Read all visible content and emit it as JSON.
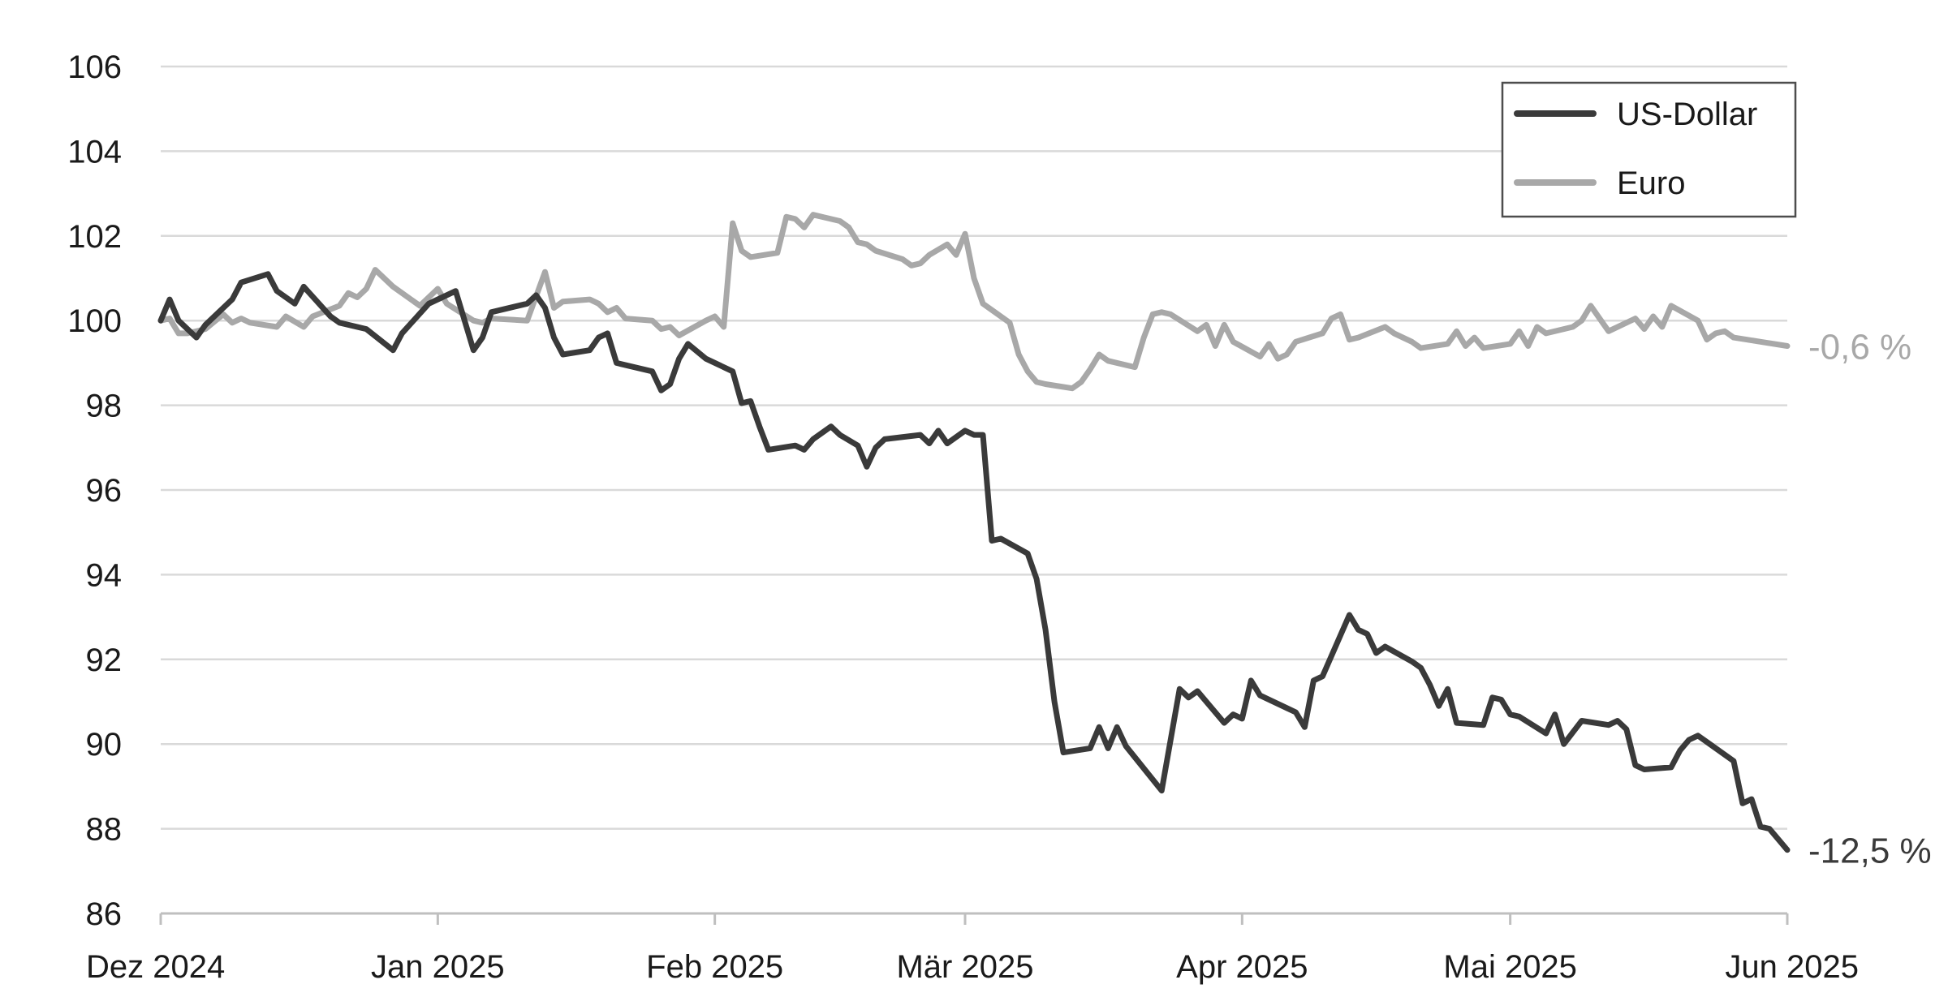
{
  "chart_data": {
    "type": "line",
    "title": "",
    "xlabel": "",
    "ylabel": "",
    "ylim": [
      86,
      106
    ],
    "y_ticks": [
      "106",
      "104",
      "102",
      "100",
      "98",
      "96",
      "94",
      "92",
      "90",
      "88",
      "86"
    ],
    "x_range": [
      "2024-12-01",
      "2025-06-01"
    ],
    "x_ticks": [
      {
        "date": "2024-12-01",
        "label": "Dez 2024"
      },
      {
        "date": "2025-01-01",
        "label": "Jan 2025"
      },
      {
        "date": "2025-02-01",
        "label": "Feb 2025"
      },
      {
        "date": "2025-03-01",
        "label": "Mär 2025"
      },
      {
        "date": "2025-04-01",
        "label": "Apr 2025"
      },
      {
        "date": "2025-05-01",
        "label": "Mai 2025"
      },
      {
        "date": "2025-06-01",
        "label": "Jun 2025"
      }
    ],
    "grid": true,
    "legend_position": "top-right",
    "series": [
      {
        "name": "US-Dollar",
        "color": "#3a3a3a",
        "end_label": "-12,5 %",
        "points": [
          [
            "2024-12-01",
            100.0
          ],
          [
            "2024-12-02",
            100.5
          ],
          [
            "2024-12-03",
            100.0
          ],
          [
            "2024-12-05",
            99.6
          ],
          [
            "2024-12-06",
            99.9
          ],
          [
            "2024-12-08",
            100.3
          ],
          [
            "2024-12-09",
            100.5
          ],
          [
            "2024-12-10",
            100.9
          ],
          [
            "2024-12-13",
            101.1
          ],
          [
            "2024-12-14",
            100.7
          ],
          [
            "2024-12-16",
            100.4
          ],
          [
            "2024-12-17",
            100.8
          ],
          [
            "2024-12-20",
            100.1
          ],
          [
            "2024-12-21",
            99.95
          ],
          [
            "2024-12-24",
            99.8
          ],
          [
            "2024-12-27",
            99.3
          ],
          [
            "2024-12-28",
            99.7
          ],
          [
            "2024-12-31",
            100.4
          ],
          [
            "2025-01-03",
            100.7
          ],
          [
            "2025-01-05",
            99.3
          ],
          [
            "2025-01-06",
            99.6
          ],
          [
            "2025-01-07",
            100.2
          ],
          [
            "2025-01-11",
            100.4
          ],
          [
            "2025-01-12",
            100.6
          ],
          [
            "2025-01-13",
            100.3
          ],
          [
            "2025-01-14",
            99.6
          ],
          [
            "2025-01-15",
            99.2
          ],
          [
            "2025-01-18",
            99.3
          ],
          [
            "2025-01-19",
            99.6
          ],
          [
            "2025-01-20",
            99.7
          ],
          [
            "2025-01-21",
            99.0
          ],
          [
            "2025-01-25",
            98.8
          ],
          [
            "2025-01-26",
            98.35
          ],
          [
            "2025-01-27",
            98.5
          ],
          [
            "2025-01-28",
            99.1
          ],
          [
            "2025-01-29",
            99.45
          ],
          [
            "2025-01-31",
            99.1
          ],
          [
            "2025-02-03",
            98.8
          ],
          [
            "2025-02-04",
            98.05
          ],
          [
            "2025-02-05",
            98.1
          ],
          [
            "2025-02-06",
            97.5
          ],
          [
            "2025-02-07",
            96.95
          ],
          [
            "2025-02-10",
            97.05
          ],
          [
            "2025-02-11",
            96.95
          ],
          [
            "2025-02-12",
            97.2
          ],
          [
            "2025-02-14",
            97.5
          ],
          [
            "2025-02-15",
            97.3
          ],
          [
            "2025-02-17",
            97.05
          ],
          [
            "2025-02-18",
            96.55
          ],
          [
            "2025-02-19",
            97.0
          ],
          [
            "2025-02-20",
            97.2
          ],
          [
            "2025-02-24",
            97.3
          ],
          [
            "2025-02-25",
            97.1
          ],
          [
            "2025-02-26",
            97.4
          ],
          [
            "2025-02-27",
            97.1
          ],
          [
            "2025-03-01",
            97.4
          ],
          [
            "2025-03-02",
            97.3
          ],
          [
            "2025-03-03",
            97.3
          ],
          [
            "2025-03-04",
            94.8
          ],
          [
            "2025-03-05",
            94.85
          ],
          [
            "2025-03-08",
            94.5
          ],
          [
            "2025-03-09",
            93.9
          ],
          [
            "2025-03-10",
            92.7
          ],
          [
            "2025-03-11",
            91.0
          ],
          [
            "2025-03-12",
            89.8
          ],
          [
            "2025-03-15",
            89.9
          ],
          [
            "2025-03-16",
            90.4
          ],
          [
            "2025-03-17",
            89.9
          ],
          [
            "2025-03-18",
            90.4
          ],
          [
            "2025-03-19",
            89.95
          ],
          [
            "2025-03-23",
            88.9
          ],
          [
            "2025-03-25",
            91.3
          ],
          [
            "2025-03-26",
            91.1
          ],
          [
            "2025-03-27",
            91.25
          ],
          [
            "2025-03-30",
            90.5
          ],
          [
            "2025-03-31",
            90.7
          ],
          [
            "2025-04-01",
            90.6
          ],
          [
            "2025-04-02",
            91.5
          ],
          [
            "2025-04-03",
            91.15
          ],
          [
            "2025-04-06",
            90.85
          ],
          [
            "2025-04-07",
            90.75
          ],
          [
            "2025-04-08",
            90.4
          ],
          [
            "2025-04-09",
            91.5
          ],
          [
            "2025-04-10",
            91.6
          ],
          [
            "2025-04-13",
            93.05
          ],
          [
            "2025-04-14",
            92.7
          ],
          [
            "2025-04-15",
            92.6
          ],
          [
            "2025-04-16",
            92.15
          ],
          [
            "2025-04-17",
            92.3
          ],
          [
            "2025-04-20",
            91.95
          ],
          [
            "2025-04-21",
            91.8
          ],
          [
            "2025-04-22",
            91.4
          ],
          [
            "2025-04-23",
            90.9
          ],
          [
            "2025-04-24",
            91.3
          ],
          [
            "2025-04-25",
            90.5
          ],
          [
            "2025-04-28",
            90.45
          ],
          [
            "2025-04-29",
            91.1
          ],
          [
            "2025-04-30",
            91.05
          ],
          [
            "2025-05-01",
            90.7
          ],
          [
            "2025-05-02",
            90.65
          ],
          [
            "2025-05-05",
            90.25
          ],
          [
            "2025-05-06",
            90.7
          ],
          [
            "2025-05-07",
            90.0
          ],
          [
            "2025-05-09",
            90.55
          ],
          [
            "2025-05-12",
            90.45
          ],
          [
            "2025-05-13",
            90.55
          ],
          [
            "2025-05-14",
            90.35
          ],
          [
            "2025-05-15",
            89.5
          ],
          [
            "2025-05-16",
            89.4
          ],
          [
            "2025-05-19",
            89.45
          ],
          [
            "2025-05-20",
            89.85
          ],
          [
            "2025-05-21",
            90.1
          ],
          [
            "2025-05-22",
            90.2
          ],
          [
            "2025-05-23",
            90.05
          ],
          [
            "2025-05-26",
            89.6
          ],
          [
            "2025-05-27",
            88.6
          ],
          [
            "2025-05-28",
            88.7
          ],
          [
            "2025-05-29",
            88.05
          ],
          [
            "2025-05-30",
            88.0
          ],
          [
            "2025-06-01",
            87.5
          ]
        ]
      },
      {
        "name": "Euro",
        "color": "#a8a8a8",
        "end_label": "-0,6 %",
        "points": [
          [
            "2024-12-01",
            100.0
          ],
          [
            "2024-12-02",
            100.05
          ],
          [
            "2024-12-03",
            99.7
          ],
          [
            "2024-12-04",
            99.7
          ],
          [
            "2024-12-06",
            99.8
          ],
          [
            "2024-12-08",
            100.15
          ],
          [
            "2024-12-09",
            99.95
          ],
          [
            "2024-12-10",
            100.05
          ],
          [
            "2024-12-11",
            99.95
          ],
          [
            "2024-12-14",
            99.85
          ],
          [
            "2024-12-15",
            100.1
          ],
          [
            "2024-12-17",
            99.85
          ],
          [
            "2024-12-18",
            100.1
          ],
          [
            "2024-12-21",
            100.35
          ],
          [
            "2024-12-22",
            100.65
          ],
          [
            "2024-12-23",
            100.55
          ],
          [
            "2024-12-24",
            100.75
          ],
          [
            "2024-12-25",
            101.2
          ],
          [
            "2024-12-27",
            100.8
          ],
          [
            "2024-12-30",
            100.35
          ],
          [
            "2025-01-01",
            100.75
          ],
          [
            "2025-01-02",
            100.4
          ],
          [
            "2025-01-05",
            100.0
          ],
          [
            "2025-01-06",
            99.95
          ],
          [
            "2025-01-07",
            100.05
          ],
          [
            "2025-01-11",
            100.0
          ],
          [
            "2025-01-13",
            101.15
          ],
          [
            "2025-01-14",
            100.3
          ],
          [
            "2025-01-15",
            100.45
          ],
          [
            "2025-01-18",
            100.5
          ],
          [
            "2025-01-19",
            100.4
          ],
          [
            "2025-01-20",
            100.2
          ],
          [
            "2025-01-21",
            100.3
          ],
          [
            "2025-01-22",
            100.05
          ],
          [
            "2025-01-25",
            100.0
          ],
          [
            "2025-01-26",
            99.8
          ],
          [
            "2025-01-27",
            99.85
          ],
          [
            "2025-01-28",
            99.65
          ],
          [
            "2025-01-31",
            100.0
          ],
          [
            "2025-02-01",
            100.1
          ],
          [
            "2025-02-02",
            99.85
          ],
          [
            "2025-02-03",
            102.3
          ],
          [
            "2025-02-04",
            101.65
          ],
          [
            "2025-02-05",
            101.5
          ],
          [
            "2025-02-08",
            101.6
          ],
          [
            "2025-02-09",
            102.45
          ],
          [
            "2025-02-10",
            102.4
          ],
          [
            "2025-02-11",
            102.2
          ],
          [
            "2025-02-12",
            102.5
          ],
          [
            "2025-02-15",
            102.35
          ],
          [
            "2025-02-16",
            102.2
          ],
          [
            "2025-02-17",
            101.85
          ],
          [
            "2025-02-18",
            101.8
          ],
          [
            "2025-02-19",
            101.65
          ],
          [
            "2025-02-22",
            101.45
          ],
          [
            "2025-02-23",
            101.3
          ],
          [
            "2025-02-24",
            101.35
          ],
          [
            "2025-02-25",
            101.55
          ],
          [
            "2025-02-27",
            101.8
          ],
          [
            "2025-02-28",
            101.55
          ],
          [
            "2025-03-01",
            102.05
          ],
          [
            "2025-03-02",
            101.0
          ],
          [
            "2025-03-03",
            100.4
          ],
          [
            "2025-03-06",
            99.95
          ],
          [
            "2025-03-07",
            99.2
          ],
          [
            "2025-03-08",
            98.8
          ],
          [
            "2025-03-09",
            98.55
          ],
          [
            "2025-03-10",
            98.5
          ],
          [
            "2025-03-13",
            98.4
          ],
          [
            "2025-03-14",
            98.55
          ],
          [
            "2025-03-15",
            98.85
          ],
          [
            "2025-03-16",
            99.2
          ],
          [
            "2025-03-17",
            99.05
          ],
          [
            "2025-03-20",
            98.9
          ],
          [
            "2025-03-21",
            99.6
          ],
          [
            "2025-03-22",
            100.15
          ],
          [
            "2025-03-23",
            100.2
          ],
          [
            "2025-03-24",
            100.15
          ],
          [
            "2025-03-27",
            99.75
          ],
          [
            "2025-03-28",
            99.9
          ],
          [
            "2025-03-29",
            99.4
          ],
          [
            "2025-03-30",
            99.9
          ],
          [
            "2025-03-31",
            99.5
          ],
          [
            "2025-04-03",
            99.15
          ],
          [
            "2025-04-04",
            99.45
          ],
          [
            "2025-04-05",
            99.1
          ],
          [
            "2025-04-06",
            99.2
          ],
          [
            "2025-04-07",
            99.5
          ],
          [
            "2025-04-10",
            99.7
          ],
          [
            "2025-04-11",
            100.05
          ],
          [
            "2025-04-12",
            100.15
          ],
          [
            "2025-04-13",
            99.55
          ],
          [
            "2025-04-14",
            99.6
          ],
          [
            "2025-04-17",
            99.85
          ],
          [
            "2025-04-18",
            99.7
          ],
          [
            "2025-04-20",
            99.5
          ],
          [
            "2025-04-21",
            99.35
          ],
          [
            "2025-04-24",
            99.45
          ],
          [
            "2025-04-25",
            99.75
          ],
          [
            "2025-04-26",
            99.4
          ],
          [
            "2025-04-27",
            99.6
          ],
          [
            "2025-04-28",
            99.35
          ],
          [
            "2025-05-01",
            99.45
          ],
          [
            "2025-05-02",
            99.75
          ],
          [
            "2025-05-03",
            99.4
          ],
          [
            "2025-05-04",
            99.85
          ],
          [
            "2025-05-05",
            99.7
          ],
          [
            "2025-05-08",
            99.85
          ],
          [
            "2025-05-09",
            100.0
          ],
          [
            "2025-05-10",
            100.35
          ],
          [
            "2025-05-11",
            100.05
          ],
          [
            "2025-05-12",
            99.75
          ],
          [
            "2025-05-15",
            100.05
          ],
          [
            "2025-05-16",
            99.8
          ],
          [
            "2025-05-17",
            100.1
          ],
          [
            "2025-05-18",
            99.85
          ],
          [
            "2025-05-19",
            100.35
          ],
          [
            "2025-05-22",
            100.0
          ],
          [
            "2025-05-23",
            99.55
          ],
          [
            "2025-05-24",
            99.7
          ],
          [
            "2025-05-25",
            99.75
          ],
          [
            "2025-05-26",
            99.6
          ],
          [
            "2025-05-29",
            99.5
          ],
          [
            "2025-06-01",
            99.4
          ]
        ]
      }
    ]
  }
}
